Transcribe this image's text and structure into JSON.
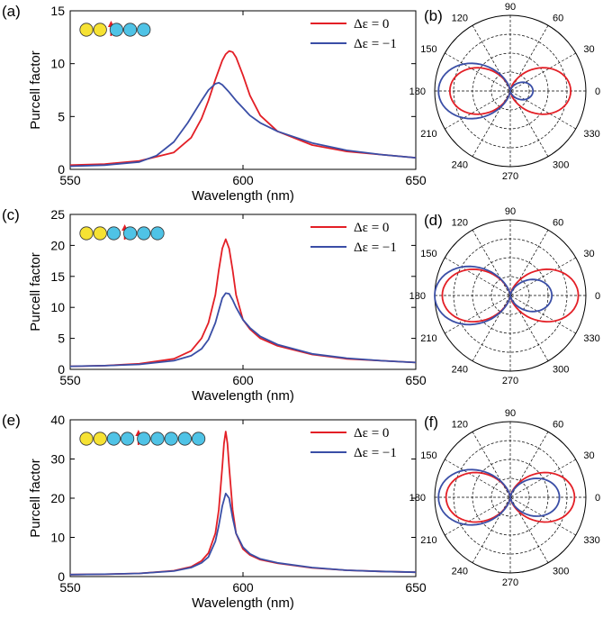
{
  "colors": {
    "red": "#e31f26",
    "blue": "#3a4ea6",
    "yellow": "#f6e233",
    "cyan": "#4fc3e6"
  },
  "legend": {
    "red": "Δε = 0",
    "blue": "Δε = −1"
  },
  "rows": [
    {
      "panel": "(a)",
      "polar_panel": "(b)",
      "ylabel": "Purcell factor",
      "xlabel": "Wavelength (nm)",
      "xlim": [
        550,
        650
      ],
      "ylim": [
        0,
        15
      ],
      "xticks": [
        "550",
        "600",
        "650"
      ],
      "yticks": [
        "0",
        "5",
        "10",
        "15"
      ],
      "particles": {
        "left": [
          "yellow",
          "yellow"
        ],
        "right": [
          "cyan",
          "cyan",
          "cyan"
        ]
      }
    },
    {
      "panel": "(c)",
      "polar_panel": "(d)",
      "ylabel": "Purcell factor",
      "xlabel": "Wavelength (nm)",
      "xlim": [
        550,
        650
      ],
      "ylim": [
        0,
        25
      ],
      "xticks": [
        "550",
        "600",
        "650"
      ],
      "yticks": [
        "0",
        "5",
        "10",
        "15",
        "20",
        "25"
      ],
      "particles": {
        "left": [
          "yellow",
          "yellow",
          "cyan"
        ],
        "right": [
          "cyan",
          "cyan",
          "cyan"
        ]
      }
    },
    {
      "panel": "(e)",
      "polar_panel": "(f)",
      "ylabel": "Purcell factor",
      "xlabel": "Wavelength (nm)",
      "xlim": [
        550,
        650
      ],
      "ylim": [
        0,
        40
      ],
      "xticks": [
        "550",
        "600",
        "650"
      ],
      "yticks": [
        "0",
        "10",
        "20",
        "30",
        "40"
      ],
      "particles": {
        "left": [
          "yellow",
          "yellow",
          "cyan",
          "cyan"
        ],
        "right": [
          "cyan",
          "cyan",
          "cyan",
          "cyan",
          "cyan"
        ]
      }
    }
  ],
  "polar_angle_labels": [
    "0",
    "30",
    "60",
    "90",
    "120",
    "150",
    "180",
    "210",
    "240",
    "270",
    "300",
    "330"
  ],
  "chart_data": [
    {
      "type": "line",
      "panel": "(a)",
      "xlabel": "Wavelength (nm)",
      "ylabel": "Purcell factor",
      "xlim": [
        550,
        650
      ],
      "ylim": [
        0,
        15
      ],
      "series": [
        {
          "name": "Δε = 0",
          "color": "#e31f26",
          "x": [
            550,
            560,
            570,
            580,
            585,
            588,
            590,
            592,
            594,
            595,
            596,
            597,
            598,
            600,
            602,
            605,
            610,
            620,
            630,
            640,
            650
          ],
          "y": [
            0.4,
            0.5,
            0.8,
            1.6,
            3.0,
            4.8,
            6.5,
            8.5,
            10.3,
            10.9,
            11.2,
            11.1,
            10.6,
            8.9,
            7.0,
            5.1,
            3.6,
            2.3,
            1.7,
            1.4,
            1.1
          ]
        },
        {
          "name": "Δε = −1",
          "color": "#3a4ea6",
          "x": [
            550,
            560,
            570,
            575,
            580,
            584,
            588,
            590,
            592,
            593,
            594,
            596,
            598,
            600,
            602,
            605,
            610,
            620,
            630,
            640,
            650
          ],
          "y": [
            0.3,
            0.4,
            0.7,
            1.3,
            2.6,
            4.4,
            6.5,
            7.5,
            8.1,
            8.2,
            8.0,
            7.3,
            6.5,
            5.8,
            5.1,
            4.4,
            3.6,
            2.5,
            1.8,
            1.4,
            1.1
          ]
        }
      ]
    },
    {
      "type": "polar",
      "panel": "(b)",
      "series": [
        {
          "name": "Δε = 0",
          "color": "#e31f26",
          "left_lobe": 0.8,
          "right_lobe": 0.8
        },
        {
          "name": "Δε = −1",
          "color": "#3a4ea6",
          "left_lobe": 0.95,
          "right_lobe": 0.3
        }
      ]
    },
    {
      "type": "line",
      "panel": "(c)",
      "xlabel": "Wavelength (nm)",
      "ylabel": "Purcell factor",
      "xlim": [
        550,
        650
      ],
      "ylim": [
        0,
        25
      ],
      "series": [
        {
          "name": "Δε = 0",
          "color": "#e31f26",
          "x": [
            550,
            560,
            570,
            580,
            585,
            588,
            590,
            592,
            593,
            594,
            595,
            596,
            597,
            598,
            600,
            602,
            605,
            610,
            620,
            630,
            640,
            650
          ],
          "y": [
            0.5,
            0.6,
            0.9,
            1.7,
            3.0,
            5.0,
            7.5,
            12.0,
            16.0,
            19.5,
            21.0,
            19.5,
            16.0,
            12.0,
            8.0,
            6.5,
            5.0,
            3.8,
            2.4,
            1.7,
            1.4,
            1.1
          ]
        },
        {
          "name": "Δε = −1",
          "color": "#3a4ea6",
          "x": [
            550,
            560,
            570,
            580,
            585,
            588,
            590,
            592,
            593,
            594,
            595,
            596,
            597,
            598,
            600,
            602,
            605,
            610,
            620,
            630,
            640,
            650
          ],
          "y": [
            0.5,
            0.6,
            0.8,
            1.4,
            2.2,
            3.3,
            4.8,
            7.5,
            9.5,
            11.5,
            12.3,
            12.2,
            11.2,
            10.0,
            8.0,
            6.7,
            5.3,
            4.0,
            2.5,
            1.8,
            1.4,
            1.1
          ]
        }
      ]
    },
    {
      "type": "polar",
      "panel": "(d)",
      "series": [
        {
          "name": "Δε = 0",
          "color": "#e31f26",
          "left_lobe": 0.9,
          "right_lobe": 0.9
        },
        {
          "name": "Δε = −1",
          "color": "#3a4ea6",
          "left_lobe": 1.0,
          "right_lobe": 0.55
        }
      ]
    },
    {
      "type": "line",
      "panel": "(e)",
      "xlabel": "Wavelength (nm)",
      "ylabel": "Purcell factor",
      "xlim": [
        550,
        650
      ],
      "ylim": [
        0,
        40
      ],
      "series": [
        {
          "name": "Δε = 0",
          "color": "#e31f26",
          "x": [
            550,
            560,
            570,
            580,
            585,
            588,
            590,
            592,
            593,
            594,
            594.5,
            595,
            595.5,
            596,
            597,
            598,
            600,
            602,
            605,
            610,
            620,
            630,
            640,
            650
          ],
          "y": [
            0.5,
            0.6,
            0.8,
            1.5,
            2.5,
            4.0,
            6.0,
            11.0,
            17.0,
            28.0,
            34.0,
            37.0,
            34.0,
            28.0,
            17.0,
            11.0,
            7.0,
            5.5,
            4.3,
            3.4,
            2.2,
            1.6,
            1.3,
            1.1
          ]
        },
        {
          "name": "Δε = −1",
          "color": "#3a4ea6",
          "x": [
            550,
            560,
            570,
            580,
            585,
            588,
            590,
            592,
            593,
            594,
            595,
            596,
            597,
            598,
            600,
            602,
            605,
            610,
            620,
            630,
            640,
            650
          ],
          "y": [
            0.5,
            0.6,
            0.8,
            1.4,
            2.3,
            3.5,
            5.0,
            9.0,
            13.0,
            18.0,
            21.2,
            20.0,
            15.0,
            11.0,
            7.5,
            5.8,
            4.5,
            3.5,
            2.3,
            1.6,
            1.3,
            1.1
          ]
        }
      ]
    },
    {
      "type": "polar",
      "panel": "(f)",
      "series": [
        {
          "name": "Δε = 0",
          "color": "#e31f26",
          "left_lobe": 0.85,
          "right_lobe": 0.85
        },
        {
          "name": "Δε = −1",
          "color": "#3a4ea6",
          "left_lobe": 0.95,
          "right_lobe": 0.65
        }
      ]
    }
  ]
}
